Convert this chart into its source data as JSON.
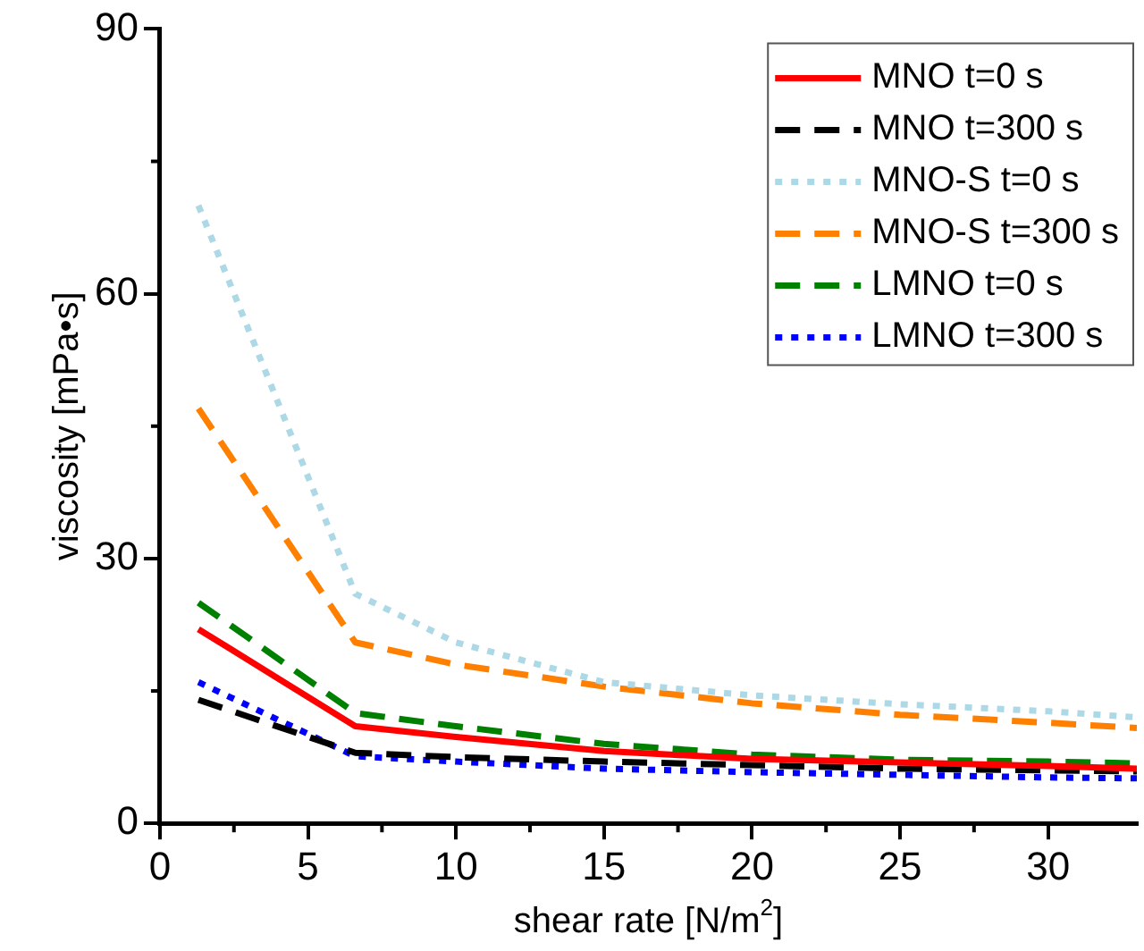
{
  "chart_data": {
    "type": "line",
    "xlabel": "shear rate [N/m$^{2}$]",
    "ylabel": "viscosity [mPa•s]",
    "x": [
      1.3,
      6.6,
      10,
      15,
      20,
      25,
      30,
      33
    ],
    "xlim": [
      0,
      33
    ],
    "xticks": [
      0,
      5,
      10,
      15,
      20,
      25,
      30
    ],
    "ylim": [
      0,
      90
    ],
    "yticks": [
      0,
      30,
      60,
      90
    ],
    "grid": false,
    "legend": "top right",
    "marker": "none",
    "series": [
      {
        "name": "MNO t=0 s",
        "color": "#ff0000",
        "line_style": "solid",
        "values": [
          22,
          11,
          9.8,
          8.2,
          7.3,
          6.9,
          6.5,
          6.2
        ]
      },
      {
        "name": "MNO t=300 s",
        "color": "#000000",
        "line_style": "dashed",
        "values": [
          14,
          8,
          7.5,
          7,
          6.6,
          6.2,
          6,
          5.9
        ]
      },
      {
        "name": "MNO-S t=0 s",
        "color": "#add8e6",
        "line_style": "dotted",
        "values": [
          70,
          26,
          20.5,
          16,
          14.5,
          13.5,
          12.7,
          12
        ]
      },
      {
        "name": "MNO-S t=300 s",
        "color": "#ff8000",
        "line_style": "dashed",
        "values": [
          47,
          20.5,
          18,
          15.5,
          13.6,
          12.3,
          11.4,
          10.8
        ]
      },
      {
        "name": "LMNO t=0 s",
        "color": "#008000",
        "line_style": "dashed",
        "values": [
          25,
          12.5,
          11,
          9,
          7.8,
          7.2,
          7,
          6.8
        ]
      },
      {
        "name": "LMNO t=300 s",
        "color": "#0000ff",
        "line_style": "dotted",
        "values": [
          16,
          7.6,
          7,
          6.2,
          5.8,
          5.5,
          5.2,
          5.1
        ]
      }
    ]
  }
}
